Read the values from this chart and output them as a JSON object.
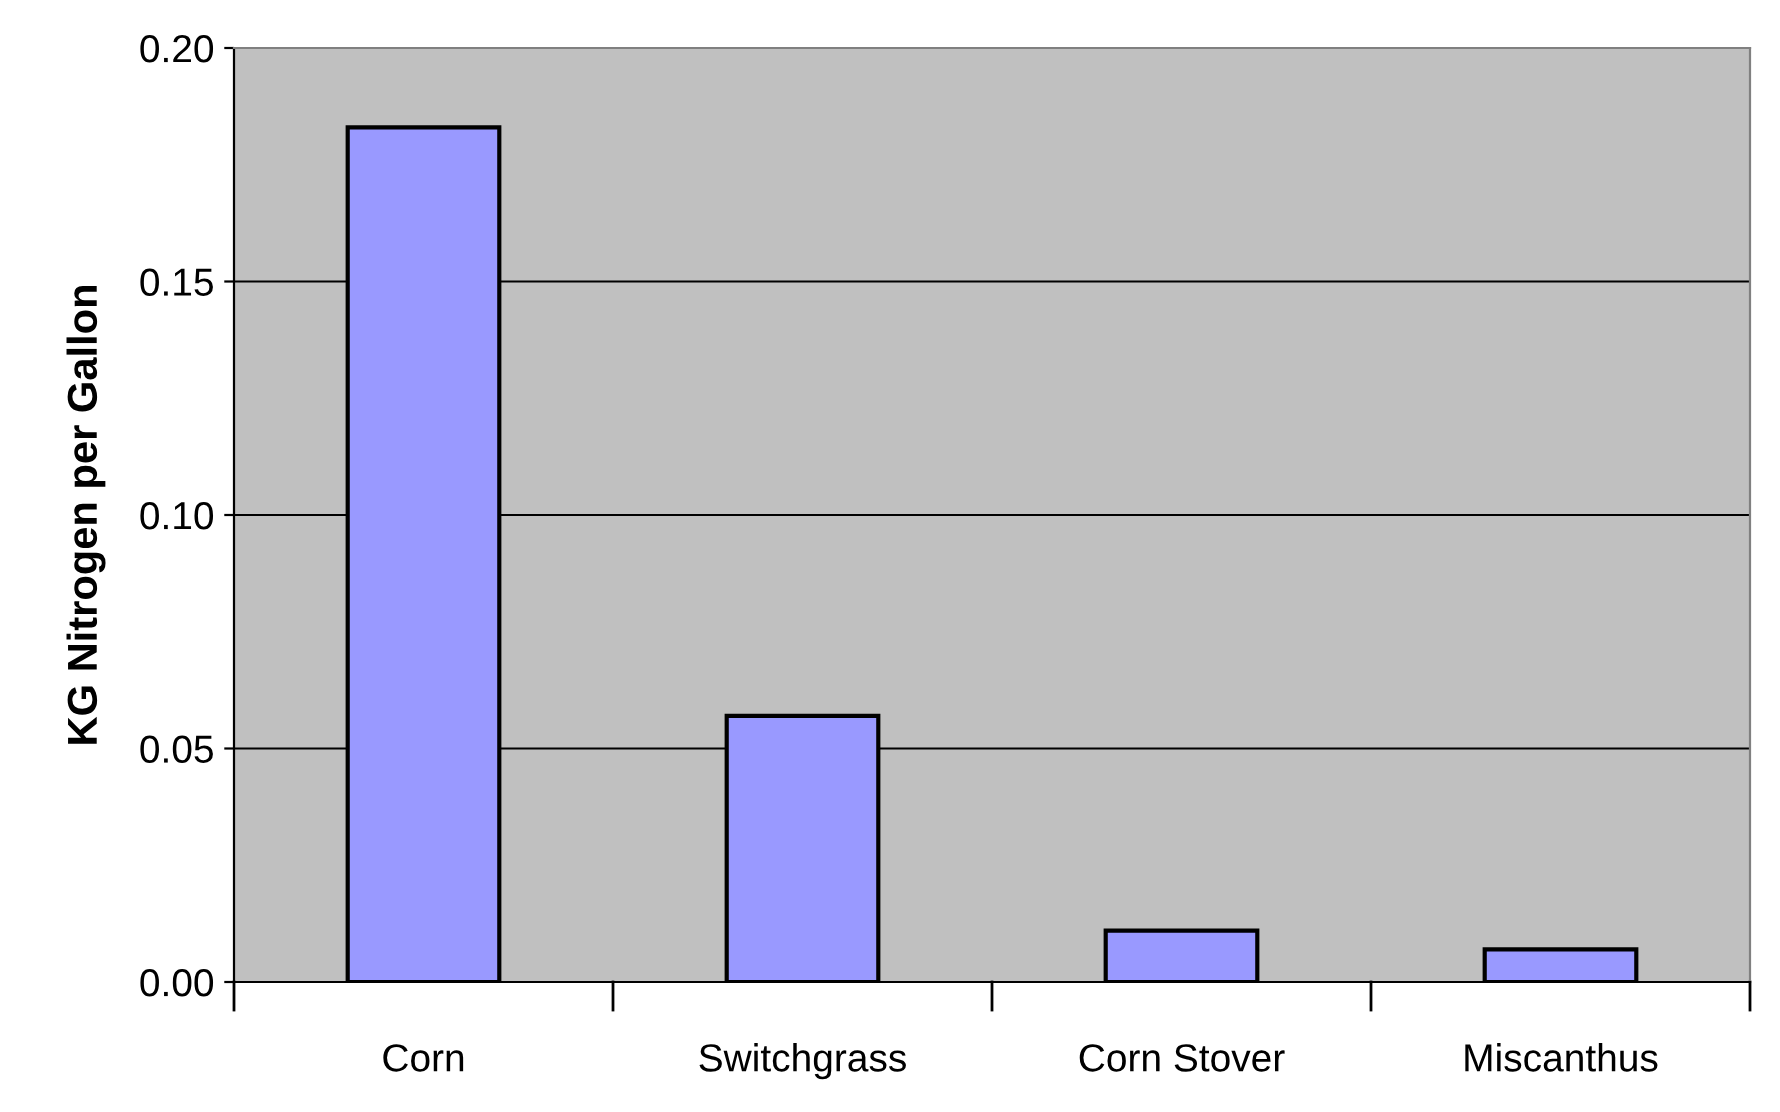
{
  "chart_data": {
    "type": "bar",
    "ylabel": "KG Nitrogen per Gallon",
    "categories": [
      "Corn",
      "Switchgrass",
      "Corn Stover",
      "Miscanthus"
    ],
    "values": [
      0.183,
      0.057,
      0.011,
      0.007
    ],
    "color": "#9999ff",
    "ylim": [
      0,
      0.2
    ],
    "yticks": [
      {
        "value": 0,
        "label": "0.00"
      },
      {
        "value": 0.05,
        "label": "0.05"
      },
      {
        "value": 0.1,
        "label": "0.10"
      },
      {
        "value": 0.15,
        "label": "0.15"
      },
      {
        "value": 0.2,
        "label": "0.20"
      }
    ],
    "grid": "y"
  }
}
